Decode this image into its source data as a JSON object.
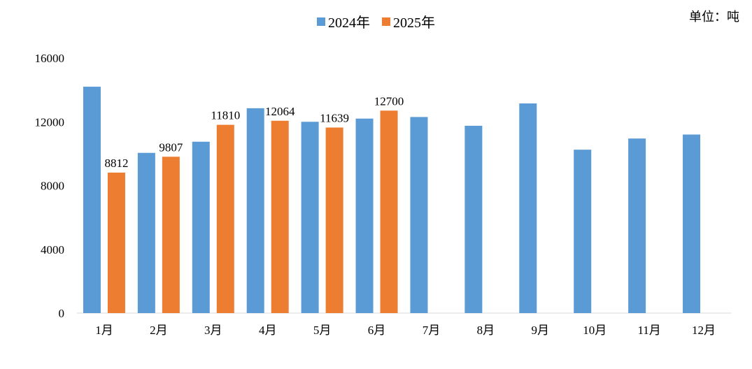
{
  "chart_data": {
    "type": "bar",
    "unit_label": "单位：吨",
    "categories": [
      "1月",
      "2月",
      "3月",
      "4月",
      "5月",
      "6月",
      "7月",
      "8月",
      "9月",
      "10月",
      "11月",
      "12月"
    ],
    "series": [
      {
        "name": "2024年",
        "color": "#5b9bd5",
        "values": [
          14200,
          10050,
          10750,
          12850,
          12000,
          12200,
          12300,
          11750,
          13150,
          10250,
          10950,
          11200
        ],
        "show_labels": false
      },
      {
        "name": "2025年",
        "color": "#ed7d31",
        "values": [
          8812,
          9807,
          11810,
          12064,
          11639,
          12700,
          null,
          null,
          null,
          null,
          null,
          null
        ],
        "show_labels": true
      }
    ],
    "yticks": [
      0,
      4000,
      8000,
      12000,
      16000
    ],
    "ylim": [
      0,
      16000
    ],
    "grid": false,
    "legend_position": "top-center"
  }
}
